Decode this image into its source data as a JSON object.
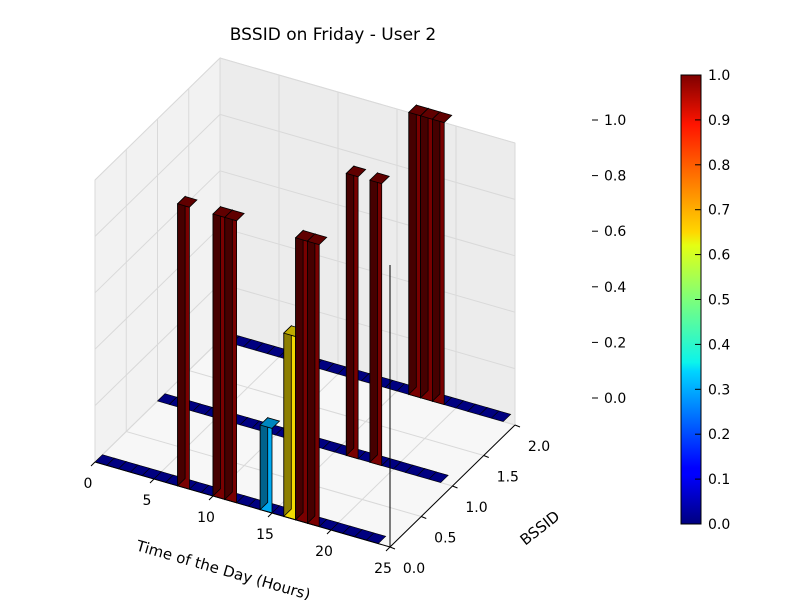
{
  "chart_data": {
    "type": "bar3d",
    "title": "BSSID on Friday - User 2",
    "xlabel": "Time of the Day (Hours)",
    "ylabel": "BSSID",
    "xlim": [
      0,
      25
    ],
    "ylim": [
      0,
      2.0
    ],
    "zlim": [
      0,
      1.0
    ],
    "x_ticks": [
      "0",
      "5",
      "10",
      "15",
      "20",
      "25"
    ],
    "y_ticks": [
      "0.0",
      "0.5",
      "1.0",
      "1.5",
      "2.0"
    ],
    "z_ticks": [
      "0.0",
      "0.2",
      "0.4",
      "0.6",
      "0.8",
      "1.0"
    ],
    "colorbar": {
      "colormap": "jet",
      "range": [
        0,
        1.0
      ],
      "ticks": [
        "0.0",
        "0.1",
        "0.2",
        "0.3",
        "0.4",
        "0.5",
        "0.6",
        "0.7",
        "0.8",
        "0.9",
        "1.0"
      ]
    },
    "bars": [
      {
        "hour_start": 7,
        "hour_end": 8,
        "bssid": 0,
        "value": 1.0
      },
      {
        "hour_start": 10,
        "hour_end": 11,
        "bssid": 0,
        "value": 1.0
      },
      {
        "hour_start": 11,
        "hour_end": 12,
        "bssid": 0,
        "value": 1.0
      },
      {
        "hour_start": 14,
        "hour_end": 15,
        "bssid": 0,
        "value": 0.3
      },
      {
        "hour_start": 16,
        "hour_end": 17,
        "bssid": 0,
        "value": 0.65
      },
      {
        "hour_start": 17,
        "hour_end": 18,
        "bssid": 0,
        "value": 1.0
      },
      {
        "hour_start": 18,
        "hour_end": 19,
        "bssid": 0,
        "value": 1.0
      },
      {
        "hour_start": 16,
        "hour_end": 17,
        "bssid": 1,
        "value": 1.0
      },
      {
        "hour_start": 18,
        "hour_end": 19,
        "bssid": 1,
        "value": 1.0
      },
      {
        "hour_start": 16,
        "hour_end": 17,
        "bssid": 2,
        "value": 1.0
      },
      {
        "hour_start": 17,
        "hour_end": 18,
        "bssid": 2,
        "value": 1.0
      },
      {
        "hour_start": 18,
        "hour_end": 19,
        "bssid": 2,
        "value": 1.0
      }
    ]
  }
}
